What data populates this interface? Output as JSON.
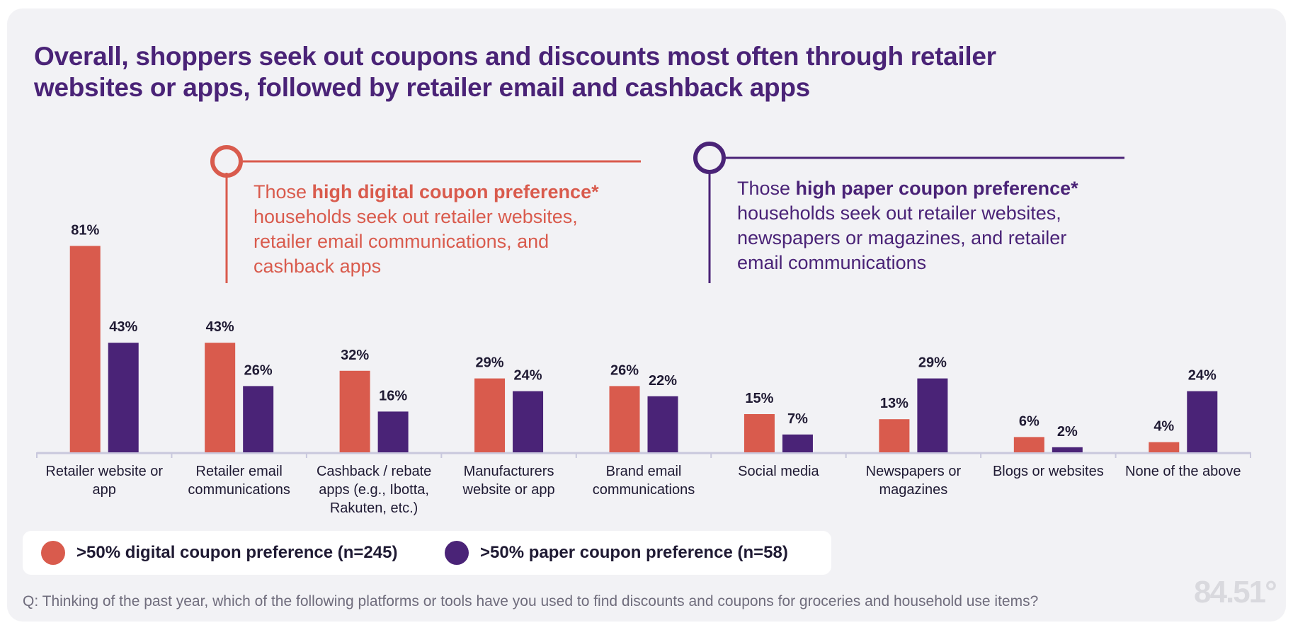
{
  "title_lines": [
    "Overall, shoppers seek out coupons and discounts most often through retailer",
    "websites or apps, followed by retailer email and cashback apps"
  ],
  "callouts": {
    "digital": {
      "prefix": "Those ",
      "bold": "high digital coupon preference*",
      "lines": [
        "households seek out retailer websites,",
        "retailer email communications, and",
        "cashback apps"
      ]
    },
    "paper": {
      "prefix": "Those ",
      "bold": "high paper coupon preference*",
      "lines": [
        "households seek out retailer websites,",
        "newspapers or magazines, and retailer",
        "email communications"
      ]
    }
  },
  "colors": {
    "digital": "#d95b4d",
    "paper": "#4a2377",
    "axis": "#c9c8dd",
    "text": "#1f1a33"
  },
  "chart_data": {
    "type": "bar",
    "title": "Overall, shoppers seek out coupons and discounts most often through retailer websites or apps, followed by retailer email and cashback apps",
    "categories": [
      [
        "Retailer website or",
        "app"
      ],
      [
        "Retailer email",
        "communications"
      ],
      [
        "Cashback / rebate",
        "apps (e.g., Ibotta,",
        "Rakuten, etc.)"
      ],
      [
        "Manufacturers",
        "website or app"
      ],
      [
        "Brand email",
        "communications"
      ],
      [
        "Social media"
      ],
      [
        "Newspapers or",
        "magazines"
      ],
      [
        "Blogs or websites"
      ],
      [
        "None of the above"
      ]
    ],
    "series": [
      {
        "name": ">50% digital coupon preference (n=245)",
        "color_key": "digital",
        "values": [
          81,
          43,
          32,
          29,
          26,
          15,
          13,
          6,
          4
        ]
      },
      {
        "name": ">50% paper coupon preference (n=58)",
        "color_key": "paper",
        "values": [
          43,
          26,
          16,
          24,
          22,
          7,
          29,
          2,
          24
        ]
      }
    ],
    "value_suffix": "%",
    "ylim": [
      0,
      100
    ],
    "xlabel": "",
    "ylabel": "",
    "grid": false,
    "legend_position": "bottom-left"
  },
  "footnote": "Q: Thinking of the past year, which of the following platforms or tools have you used to find discounts and coupons for groceries and household use items?",
  "logo_text": "84.51°"
}
